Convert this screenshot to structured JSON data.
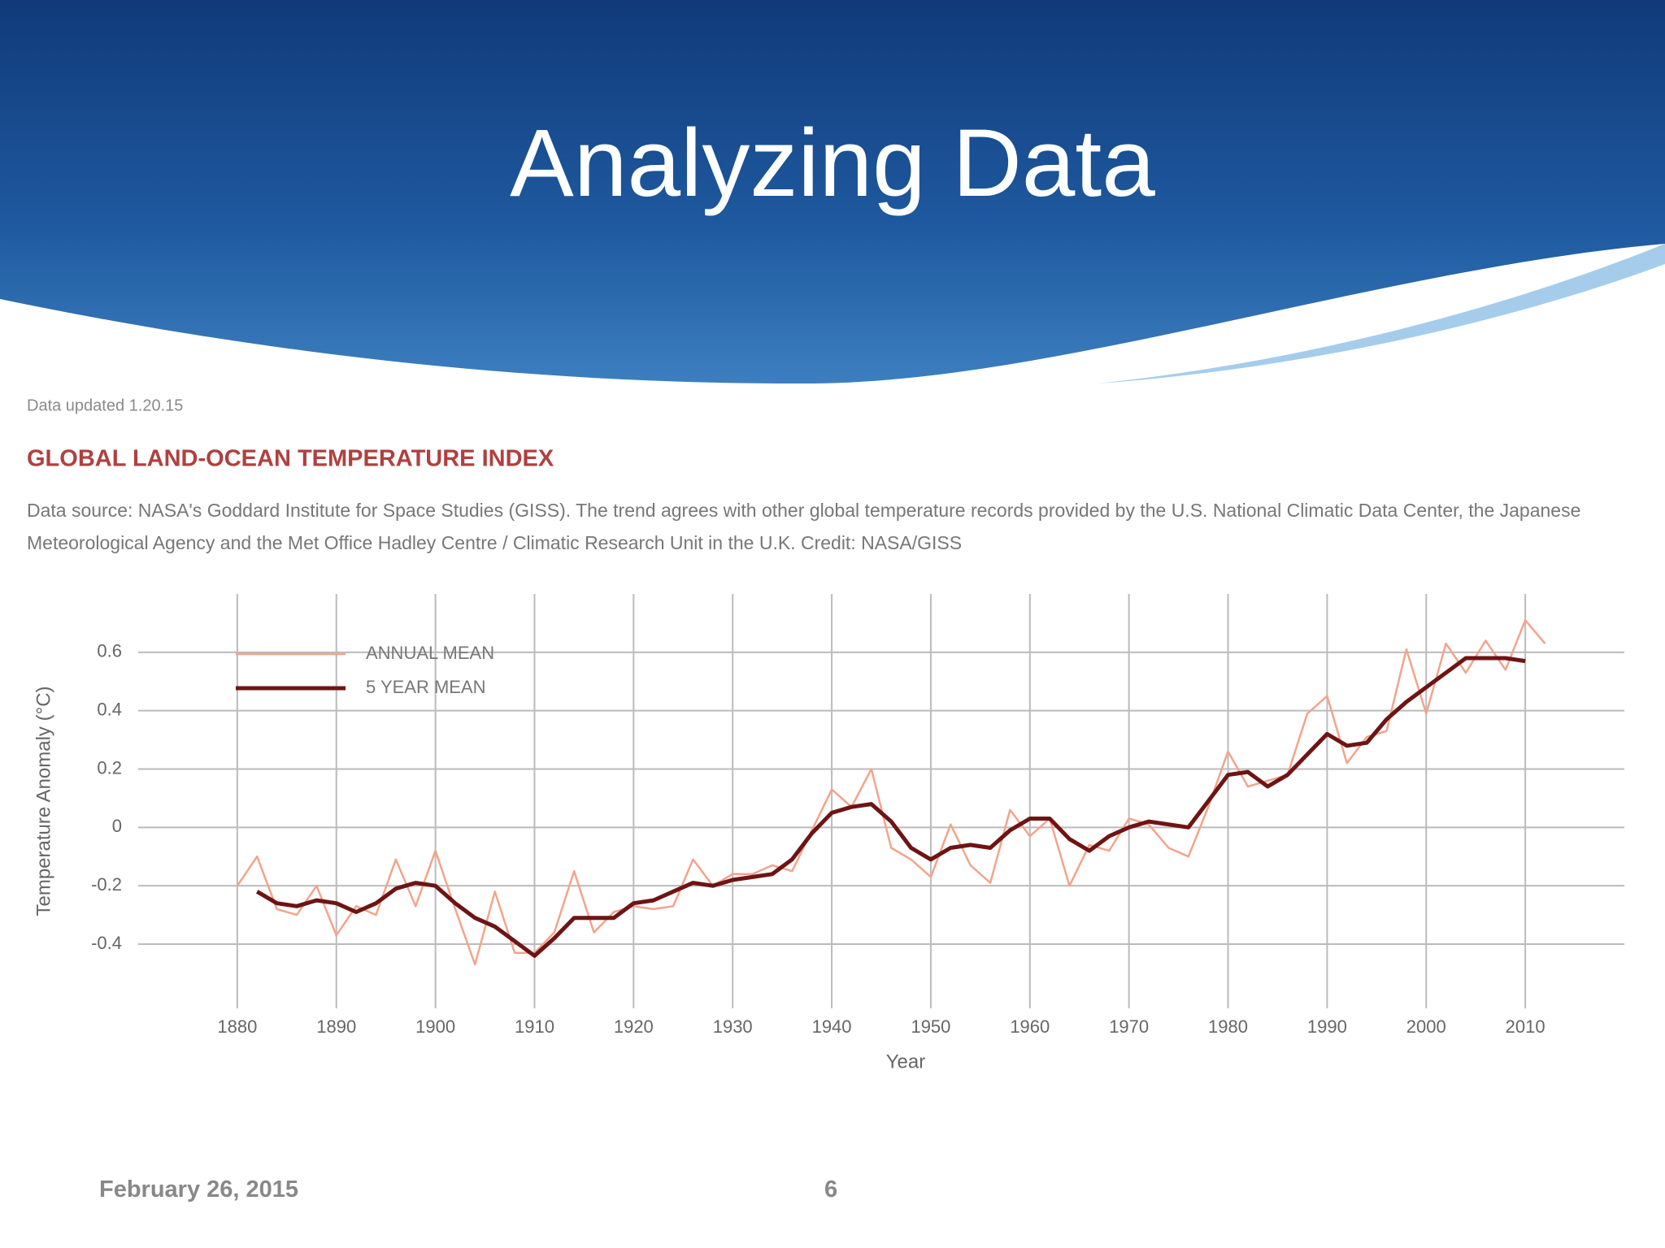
{
  "slide": {
    "title": "Analyzing Data",
    "footer_date": "February 26, 2015",
    "page_number": "6"
  },
  "chart_data": {
    "type": "line",
    "data_updated": "Data updated 1.20.15",
    "title": "GLOBAL LAND-OCEAN TEMPERATURE INDEX",
    "source": "Data source: NASA's Goddard Institute for Space Studies (GISS). The trend agrees with other global temperature records provided by the U.S. National Climatic Data Center, the Japanese Meteorological Agency and the Met Office Hadley Centre / Climatic Research Unit in the U.K. Credit: NASA/GISS",
    "x_label": "Year",
    "y_label": "Temperature Anomaly (°C)",
    "x": [
      1880,
      1882,
      1884,
      1886,
      1888,
      1890,
      1892,
      1894,
      1896,
      1898,
      1900,
      1902,
      1904,
      1906,
      1908,
      1910,
      1912,
      1914,
      1916,
      1918,
      1920,
      1922,
      1924,
      1926,
      1928,
      1930,
      1932,
      1934,
      1936,
      1938,
      1940,
      1942,
      1944,
      1946,
      1948,
      1950,
      1952,
      1954,
      1956,
      1958,
      1960,
      1962,
      1964,
      1966,
      1968,
      1970,
      1972,
      1974,
      1976,
      1978,
      1980,
      1982,
      1984,
      1986,
      1988,
      1990,
      1992,
      1994,
      1996,
      1998,
      2000,
      2002,
      2004,
      2006,
      2008,
      2010,
      2012
    ],
    "series": [
      {
        "name": "ANNUAL MEAN",
        "color": "#f2a48c",
        "values": [
          -0.2,
          -0.1,
          -0.28,
          -0.3,
          -0.2,
          -0.37,
          -0.27,
          -0.3,
          -0.11,
          -0.27,
          -0.08,
          -0.28,
          -0.47,
          -0.22,
          -0.43,
          -0.43,
          -0.36,
          -0.15,
          -0.36,
          -0.29,
          -0.27,
          -0.28,
          -0.27,
          -0.11,
          -0.2,
          -0.16,
          -0.16,
          -0.13,
          -0.15,
          -0.01,
          0.13,
          0.07,
          0.2,
          -0.07,
          -0.11,
          -0.17,
          0.01,
          -0.13,
          -0.19,
          0.06,
          -0.03,
          0.03,
          -0.2,
          -0.06,
          -0.08,
          0.03,
          0.01,
          -0.07,
          -0.1,
          0.07,
          0.26,
          0.14,
          0.16,
          0.18,
          0.39,
          0.45,
          0.22,
          0.31,
          0.33,
          0.61,
          0.39,
          0.63,
          0.53,
          0.64,
          0.54,
          0.71,
          0.63
        ]
      },
      {
        "name": "5 YEAR MEAN",
        "color": "#6e1414",
        "values": [
          null,
          -0.22,
          -0.26,
          -0.27,
          -0.25,
          -0.26,
          -0.29,
          -0.26,
          -0.21,
          -0.19,
          -0.2,
          -0.26,
          -0.31,
          -0.34,
          -0.39,
          -0.44,
          -0.38,
          -0.31,
          -0.31,
          -0.31,
          -0.26,
          -0.25,
          -0.22,
          -0.19,
          -0.2,
          -0.18,
          -0.17,
          -0.16,
          -0.11,
          -0.02,
          0.05,
          0.07,
          0.08,
          0.02,
          -0.07,
          -0.11,
          -0.07,
          -0.06,
          -0.07,
          -0.01,
          0.03,
          0.03,
          -0.04,
          -0.08,
          -0.03,
          0.0,
          0.02,
          0.01,
          0.0,
          0.09,
          0.18,
          0.19,
          0.14,
          0.18,
          0.25,
          0.32,
          0.28,
          0.29,
          0.37,
          0.43,
          0.48,
          0.53,
          0.58,
          0.58,
          0.58,
          0.57,
          null
        ]
      }
    ],
    "xlim": [
      1870,
      2020
    ],
    "xticks": [
      1880,
      1890,
      1900,
      1910,
      1920,
      1930,
      1940,
      1950,
      1960,
      1970,
      1980,
      1990,
      2000,
      2010
    ],
    "ylim": [
      -0.62,
      0.8
    ],
    "yticks": [
      -0.4,
      -0.2,
      0,
      0.2,
      0.4,
      0.6
    ],
    "grid": true
  }
}
